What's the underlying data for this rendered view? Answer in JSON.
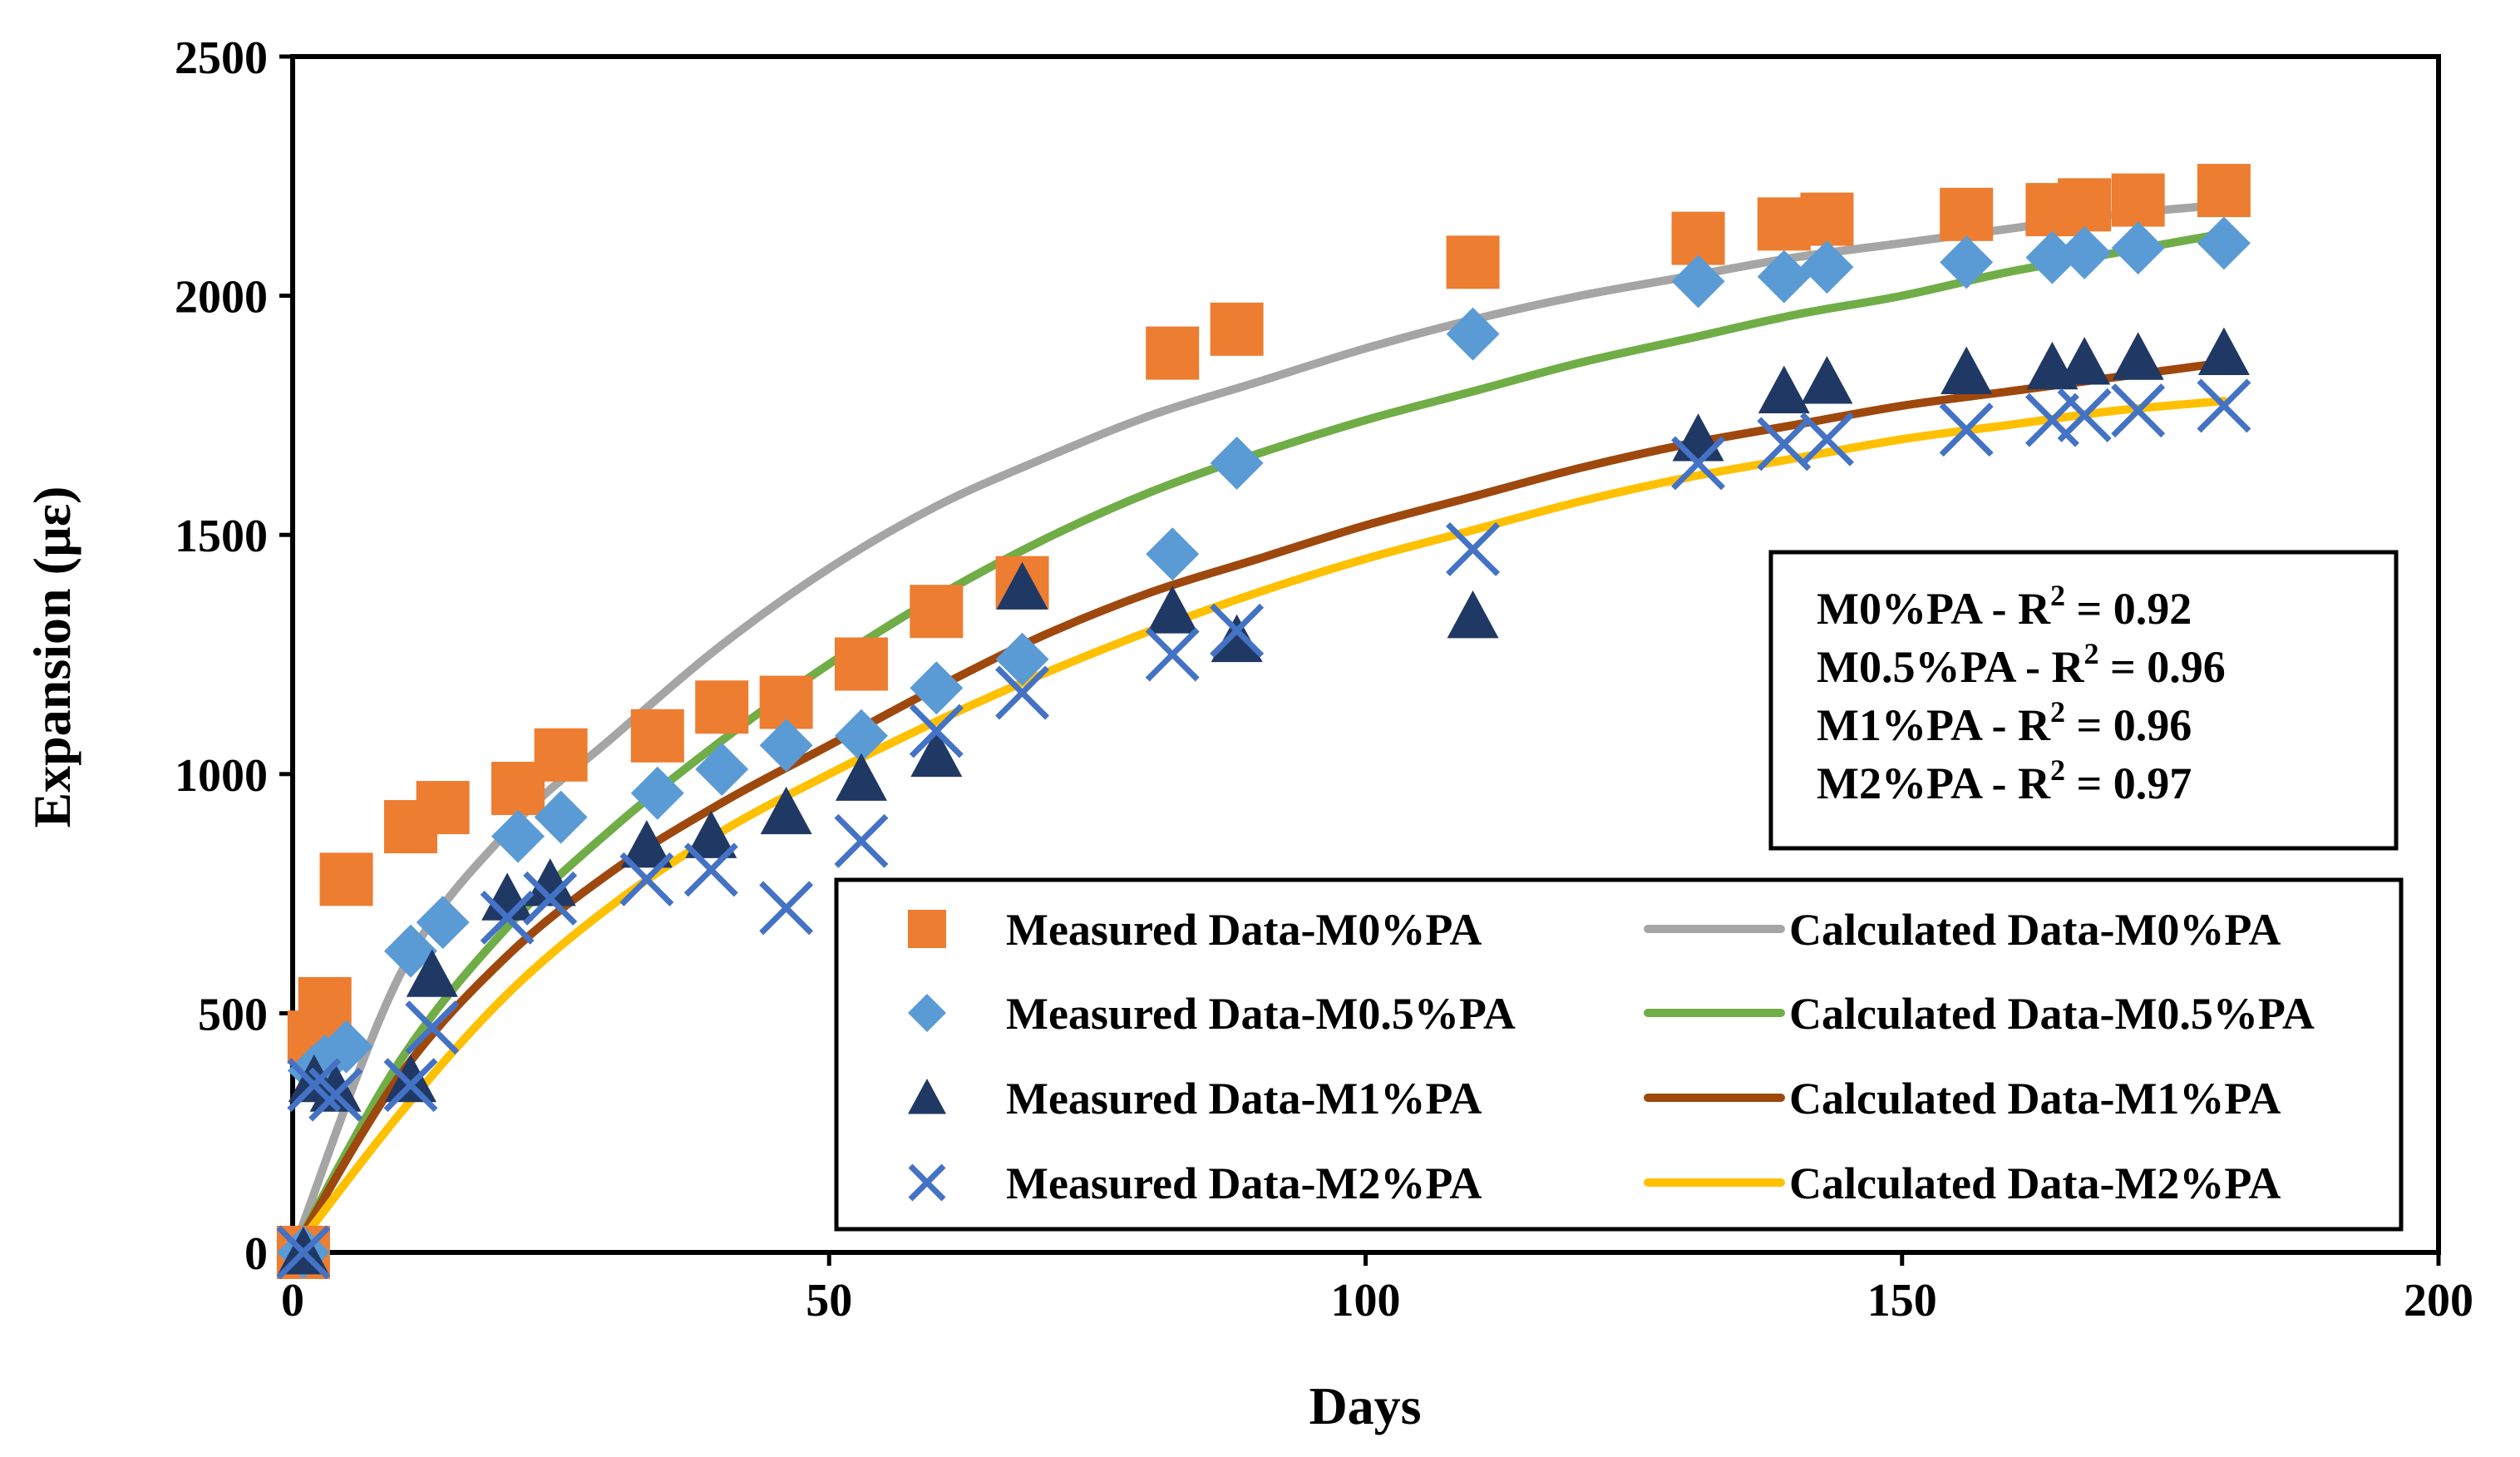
{
  "chart_data": {
    "type": "scatter",
    "xlabel": "Days",
    "ylabel": "Expansion (µε)",
    "xlim": [
      0,
      200
    ],
    "ylim": [
      0,
      2500
    ],
    "xticks": [
      "0",
      "50",
      "100",
      "150",
      "200"
    ],
    "yticks": [
      "0",
      "500",
      "1000",
      "1500",
      "2000",
      "2500"
    ],
    "grid": false,
    "legend_position": "bottom-right",
    "measured_series": [
      {
        "name": "Measured Data-M0%PA",
        "marker": "square",
        "color": "#ED7D31",
        "x": [
          1,
          2,
          3,
          5,
          11,
          14,
          21,
          25,
          34,
          40,
          46,
          53,
          60,
          68,
          82,
          88,
          110,
          131,
          139,
          143,
          156,
          164,
          167,
          172,
          180
        ],
        "y": [
          0,
          450,
          520,
          780,
          890,
          930,
          970,
          1040,
          1080,
          1140,
          1150,
          1230,
          1340,
          1400,
          1880,
          1930,
          2070,
          2120,
          2150,
          2160,
          2170,
          2180,
          2190,
          2200,
          2220
        ]
      },
      {
        "name": "Measured Data-M0.5%PA",
        "marker": "diamond",
        "color": "#5B9BD5",
        "x": [
          1,
          2,
          3,
          5,
          11,
          14,
          21,
          25,
          34,
          40,
          46,
          53,
          60,
          68,
          82,
          88,
          110,
          131,
          139,
          143,
          156,
          164,
          167,
          172,
          180
        ],
        "y": [
          0,
          380,
          400,
          430,
          630,
          690,
          870,
          910,
          960,
          1010,
          1060,
          1080,
          1180,
          1240,
          1460,
          1650,
          1920,
          2030,
          2040,
          2060,
          2070,
          2080,
          2090,
          2100,
          2110
        ]
      },
      {
        "name": "Measured Data-M1%PA",
        "marker": "triangle",
        "color": "#203864",
        "x": [
          1,
          2,
          4,
          11,
          13,
          20,
          24,
          33,
          39,
          46,
          53,
          60,
          68,
          82,
          88,
          110,
          131,
          139,
          143,
          156,
          164,
          167,
          172,
          180
        ],
        "y": [
          0,
          360,
          340,
          360,
          580,
          740,
          770,
          850,
          870,
          920,
          990,
          1040,
          1390,
          1340,
          1280,
          1330,
          1700,
          1800,
          1820,
          1840,
          1850,
          1860,
          1870,
          1880
        ]
      },
      {
        "name": "Measured Data-M2%PA",
        "marker": "x",
        "color": "#4472C4",
        "x": [
          1,
          2,
          4,
          11,
          13,
          20,
          24,
          33,
          39,
          46,
          53,
          60,
          68,
          82,
          88,
          110,
          131,
          139,
          143,
          156,
          164,
          167,
          172,
          180
        ],
        "y": [
          0,
          350,
          330,
          350,
          470,
          700,
          740,
          780,
          800,
          720,
          860,
          1090,
          1170,
          1250,
          1300,
          1470,
          1650,
          1690,
          1700,
          1720,
          1740,
          1750,
          1760,
          1770
        ]
      }
    ],
    "calculated_series": [
      {
        "name": "Calculated Data-M0%PA",
        "color": "#A5A5A5",
        "x": [
          0,
          10,
          20,
          30,
          40,
          50,
          60,
          70,
          80,
          90,
          100,
          110,
          120,
          130,
          140,
          150,
          160,
          170,
          180
        ],
        "y": [
          0,
          580,
          880,
          1080,
          1270,
          1430,
          1560,
          1660,
          1750,
          1820,
          1890,
          1950,
          2000,
          2040,
          2080,
          2110,
          2140,
          2170,
          2190
        ]
      },
      {
        "name": "Calculated Data-M0.5%PA",
        "color": "#70AD47",
        "x": [
          0,
          10,
          20,
          30,
          40,
          50,
          60,
          70,
          80,
          90,
          100,
          110,
          120,
          130,
          140,
          150,
          160,
          170,
          180
        ],
        "y": [
          0,
          400,
          680,
          890,
          1070,
          1230,
          1370,
          1490,
          1590,
          1670,
          1740,
          1800,
          1860,
          1910,
          1960,
          2000,
          2050,
          2090,
          2130
        ]
      },
      {
        "name": "Calculated Data-M1%PA",
        "color": "#9E480E",
        "x": [
          0,
          10,
          20,
          30,
          40,
          50,
          60,
          70,
          80,
          90,
          100,
          110,
          120,
          130,
          140,
          150,
          160,
          170,
          180
        ],
        "y": [
          0,
          370,
          620,
          800,
          940,
          1060,
          1180,
          1290,
          1380,
          1450,
          1520,
          1580,
          1640,
          1690,
          1730,
          1770,
          1800,
          1830,
          1860
        ]
      },
      {
        "name": "Calculated Data-M2%PA",
        "color": "#FFC000",
        "x": [
          0,
          10,
          20,
          30,
          40,
          50,
          60,
          70,
          80,
          90,
          100,
          110,
          120,
          130,
          140,
          150,
          160,
          170,
          180
        ],
        "y": [
          0,
          290,
          540,
          730,
          880,
          1000,
          1110,
          1210,
          1300,
          1380,
          1450,
          1510,
          1570,
          1620,
          1660,
          1700,
          1730,
          1760,
          1780
        ]
      }
    ],
    "r2_box": [
      {
        "series": "M0%PA - R",
        "sup": "2",
        "eq": " = 0.92"
      },
      {
        "series": "M0.5%PA - R",
        "sup": "2",
        "eq": " = 0.96"
      },
      {
        "series": "M1%PA - R",
        "sup": "2",
        "eq": " = 0.96"
      },
      {
        "series": "M2%PA - R",
        "sup": "2",
        "eq": " = 0.97"
      }
    ]
  }
}
